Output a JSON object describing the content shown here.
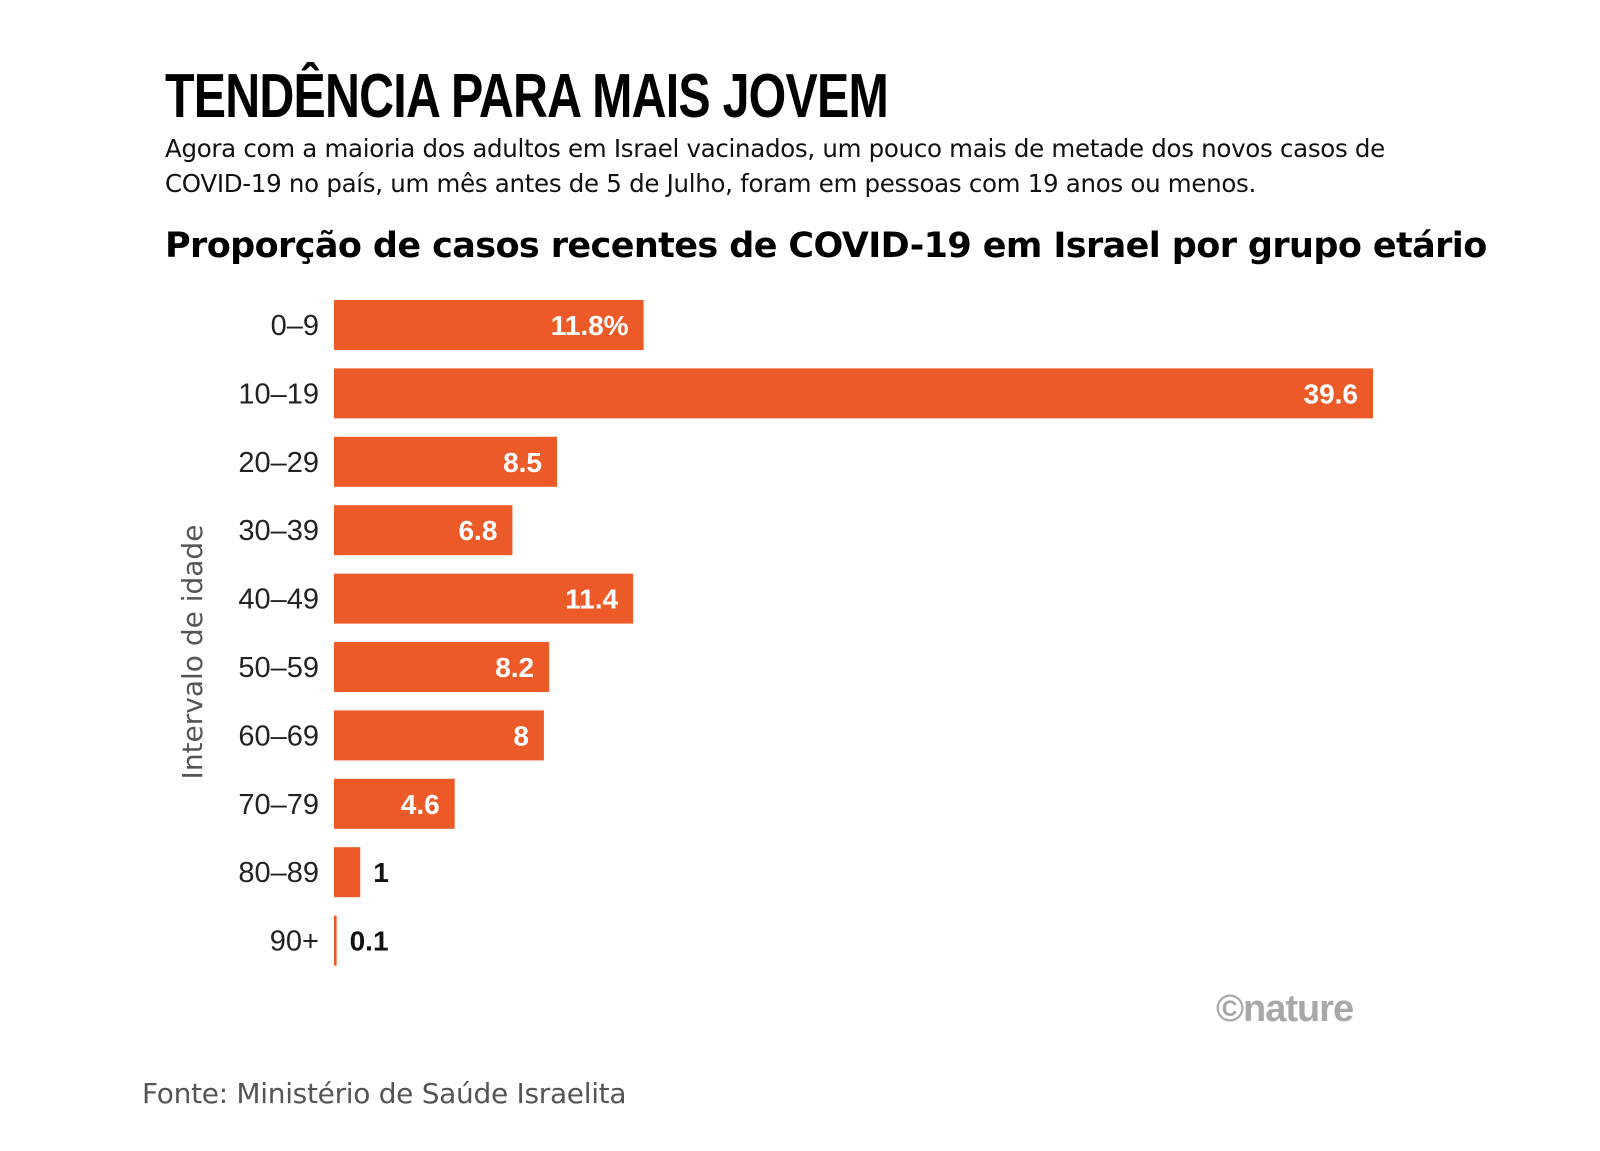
{
  "header": {
    "headline": "TENDÊNCIA PARA MAIS JOVEM",
    "standfirst": "Agora com a maioria dos adultos em Israel vacinados, um pouco mais de metade dos novos casos de COVID-19 no país, um mês antes de 5 de Julho, foram em pessoas com 19 anos ou menos."
  },
  "footer": {
    "credit": "©nature",
    "source": "Fonte: Ministério de Saúde Israelita"
  },
  "colors": {
    "bar": "#ec5b27",
    "label_inside": "#ffffff",
    "label_outside": "#111111"
  },
  "chart_data": {
    "type": "bar",
    "orientation": "horizontal",
    "title": "Proporção de casos recentes de COVID-19 em Israel por grupo etário",
    "xlabel": "",
    "ylabel": "Intervalo de idade",
    "categories": [
      "0–9",
      "10–19",
      "20–29",
      "30–39",
      "40–49",
      "50–59",
      "60–69",
      "70–79",
      "80–89",
      "90+"
    ],
    "values": [
      11.8,
      39.6,
      8.5,
      6.8,
      11.4,
      8.2,
      8,
      4.6,
      1,
      0.1
    ],
    "value_labels": [
      "11.8%",
      "39.6",
      "8.5",
      "6.8",
      "11.4",
      "8.2",
      "8",
      "4.6",
      "1",
      "0.1"
    ],
    "unit": "%",
    "xlim": [
      0,
      39.6
    ],
    "grid": false,
    "legend": "none"
  }
}
